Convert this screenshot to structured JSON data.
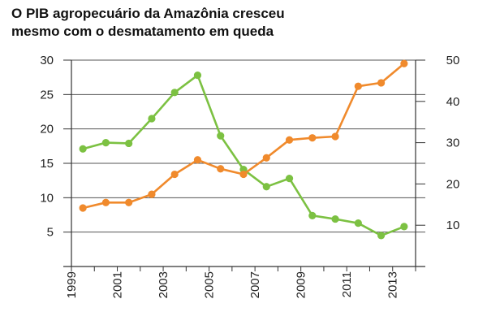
{
  "chart_data": {
    "type": "line",
    "title_lines": [
      "O PIB agropecuário da Amazônia cresceu",
      "mesmo com o desmatamento em queda"
    ],
    "xlabel": "",
    "ylabel_left": "",
    "ylabel_right": "",
    "x_range": [
      1999,
      2014
    ],
    "x_ticks": [
      1999,
      2001,
      2003,
      2005,
      2007,
      2009,
      2011,
      2013
    ],
    "x_tick_labels": [
      "1999",
      "2001",
      "2003",
      "2005",
      "2007",
      "2009",
      "2011",
      "2013"
    ],
    "y_left": {
      "range": [
        0,
        30
      ],
      "ticks": [
        5,
        10,
        15,
        20,
        25,
        30
      ],
      "tick_labels": [
        "5",
        "10",
        "15",
        "20",
        "25",
        "30"
      ]
    },
    "y_right": {
      "range": [
        0,
        50
      ],
      "ticks": [
        10,
        20,
        30,
        40,
        50
      ],
      "tick_labels": [
        "10",
        "20",
        "30",
        "40",
        "50"
      ]
    },
    "grid": true,
    "colors": {
      "series_green": "#7cc142",
      "series_orange": "#f08a2c",
      "grid": "#555555",
      "axis": "#333333"
    },
    "series": [
      {
        "name": "green",
        "axis": "left",
        "color": "#7cc142",
        "x": [
          1999.5,
          2000.5,
          2001.5,
          2002.5,
          2003.5,
          2004.5,
          2005.5,
          2006.5,
          2007.5,
          2008.5,
          2009.5,
          2010.5,
          2011.5,
          2012.5,
          2013.5
        ],
        "values": [
          17.1,
          18.0,
          17.9,
          21.5,
          25.3,
          27.8,
          19.0,
          14.1,
          11.6,
          12.8,
          7.4,
          6.9,
          6.3,
          4.5,
          5.8
        ]
      },
      {
        "name": "orange",
        "axis": "left",
        "color": "#f08a2c",
        "x": [
          1999.5,
          2000.5,
          2001.5,
          2002.5,
          2003.5,
          2004.5,
          2005.5,
          2006.5,
          2007.5,
          2008.5,
          2009.5,
          2010.5,
          2011.5,
          2012.5,
          2013.5
        ],
        "values": [
          8.5,
          9.3,
          9.3,
          10.5,
          13.4,
          15.5,
          14.2,
          13.4,
          15.8,
          18.4,
          18.7,
          18.9,
          26.2,
          26.7,
          29.5
        ]
      }
    ]
  }
}
